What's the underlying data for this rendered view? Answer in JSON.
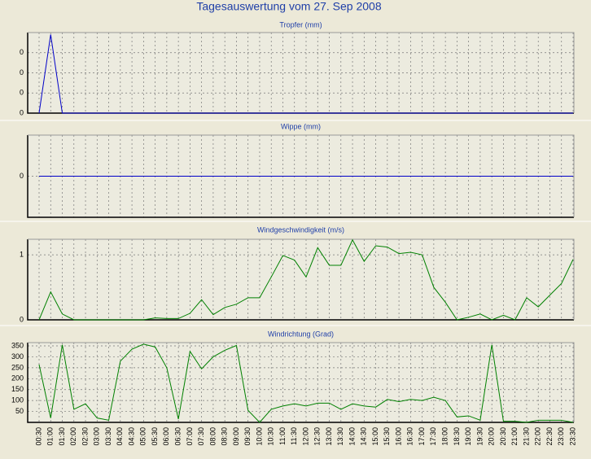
{
  "title": "Tagesauswertung vom 27. Sep 2008",
  "chart_data": [
    {
      "type": "line",
      "title": "Tropfer (mm)",
      "color": "#0000c8",
      "grid": true,
      "ylim": [
        0,
        0.4
      ],
      "yticks": [
        0,
        {
          "value": 0.1,
          "label": "0"
        },
        {
          "value": 0.2,
          "label": "0"
        },
        {
          "value": 0.3,
          "label": "0"
        }
      ],
      "values": [
        0,
        0.39,
        0,
        0,
        0,
        0,
        0,
        0,
        0,
        0,
        0,
        0,
        0,
        0,
        0,
        0,
        0,
        0,
        0,
        0,
        0,
        0,
        0,
        0,
        0,
        0,
        0,
        0,
        0,
        0,
        0,
        0,
        0,
        0,
        0,
        0,
        0,
        0,
        0,
        0,
        0,
        0,
        0,
        0,
        0,
        0,
        0
      ]
    },
    {
      "type": "line",
      "title": "Wippe (mm)",
      "color": "#0000c8",
      "grid": true,
      "ylim": [
        -1,
        1
      ],
      "yticks": [
        0
      ],
      "values": [
        0,
        0,
        0,
        0,
        0,
        0,
        0,
        0,
        0,
        0,
        0,
        0,
        0,
        0,
        0,
        0,
        0,
        0,
        0,
        0,
        0,
        0,
        0,
        0,
        0,
        0,
        0,
        0,
        0,
        0,
        0,
        0,
        0,
        0,
        0,
        0,
        0,
        0,
        0,
        0,
        0,
        0,
        0,
        0,
        0,
        0,
        0
      ]
    },
    {
      "type": "line",
      "title": "Windgeschwindigkeit (m/s)",
      "color": "#008000",
      "grid": true,
      "ylim": [
        0,
        1.24
      ],
      "yticks": [
        0,
        1
      ],
      "values": [
        0,
        0.43,
        0.09,
        0,
        0,
        0,
        0,
        0,
        0,
        0,
        0.03,
        0.02,
        0.02,
        0.1,
        0.31,
        0.08,
        0.19,
        0.24,
        0.34,
        0.34,
        0.66,
        0.99,
        0.92,
        0.66,
        1.11,
        0.84,
        0.84,
        1.23,
        0.9,
        1.14,
        1.12,
        1.02,
        1.04,
        1.0,
        0.5,
        0.27,
        0,
        0.04,
        0.09,
        0,
        0.07,
        0,
        0.34,
        0.2,
        0.38,
        0.56,
        0.93
      ]
    },
    {
      "type": "line",
      "title": "Windrichtung (Grad)",
      "color": "#008000",
      "grid": true,
      "ylim": [
        0,
        365
      ],
      "yticks": [
        50,
        100,
        150,
        200,
        250,
        300,
        350
      ],
      "categories": [
        "00:30",
        "01:00",
        "01:30",
        "02:00",
        "02:30",
        "03:00",
        "03:30",
        "04:00",
        "04:30",
        "05:00",
        "05:30",
        "06:00",
        "06:30",
        "07:00",
        "07:30",
        "08:00",
        "08:30",
        "09:00",
        "09:30",
        "10:00",
        "10:30",
        "11:00",
        "11:30",
        "12:00",
        "12:30",
        "13:00",
        "13:30",
        "14:00",
        "14:30",
        "15:00",
        "15:30",
        "16:00",
        "16:30",
        "17:00",
        "17:30",
        "18:00",
        "18:30",
        "19:00",
        "19:30",
        "20:00",
        "20:30",
        "21:00",
        "21:30",
        "22:00",
        "22:30",
        "23:00",
        "23:30"
      ],
      "values": [
        265,
        20,
        355,
        60,
        85,
        20,
        10,
        280,
        335,
        358,
        345,
        250,
        15,
        325,
        245,
        300,
        330,
        352,
        55,
        0,
        60,
        75,
        85,
        75,
        88,
        88,
        60,
        85,
        75,
        70,
        105,
        95,
        105,
        100,
        115,
        100,
        25,
        30,
        10,
        355,
        5,
        5,
        0,
        10,
        10,
        10,
        0
      ]
    }
  ]
}
